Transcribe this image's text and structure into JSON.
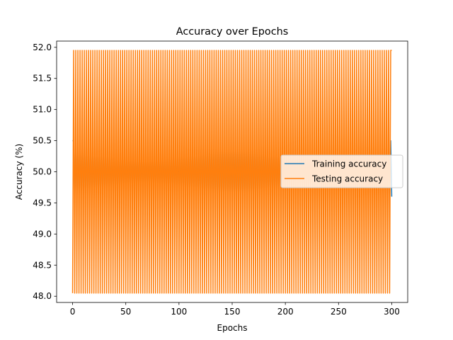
{
  "chart_data": {
    "type": "line",
    "title": "Accuracy over Epochs",
    "xlabel": "Epochs",
    "ylabel": "Accuracy (%)",
    "xlim": [
      -15,
      315
    ],
    "ylim": [
      47.9,
      52.1
    ],
    "xticks": [
      0,
      50,
      100,
      150,
      200,
      250,
      300
    ],
    "yticks": [
      48.0,
      48.5,
      49.0,
      49.5,
      50.0,
      50.5,
      51.0,
      51.5,
      52.0
    ],
    "ytick_labels": [
      "48.0",
      "48.5",
      "49.0",
      "49.5",
      "50.0",
      "50.5",
      "51.0",
      "51.5",
      "52.0"
    ],
    "grid": false,
    "legend_position": "center-right",
    "epochs": 300,
    "series": [
      {
        "name": "Training accuracy",
        "color": "#1f77b4",
        "pattern": "alternating",
        "start": 50.5,
        "high": 50.5,
        "low": 49.5,
        "end": 49.6
      },
      {
        "name": "Testing accuracy",
        "color": "#ff7f0e",
        "pattern": "alternating",
        "start": 48.05,
        "high": 51.95,
        "low": 48.05,
        "end": 51.95
      }
    ]
  }
}
